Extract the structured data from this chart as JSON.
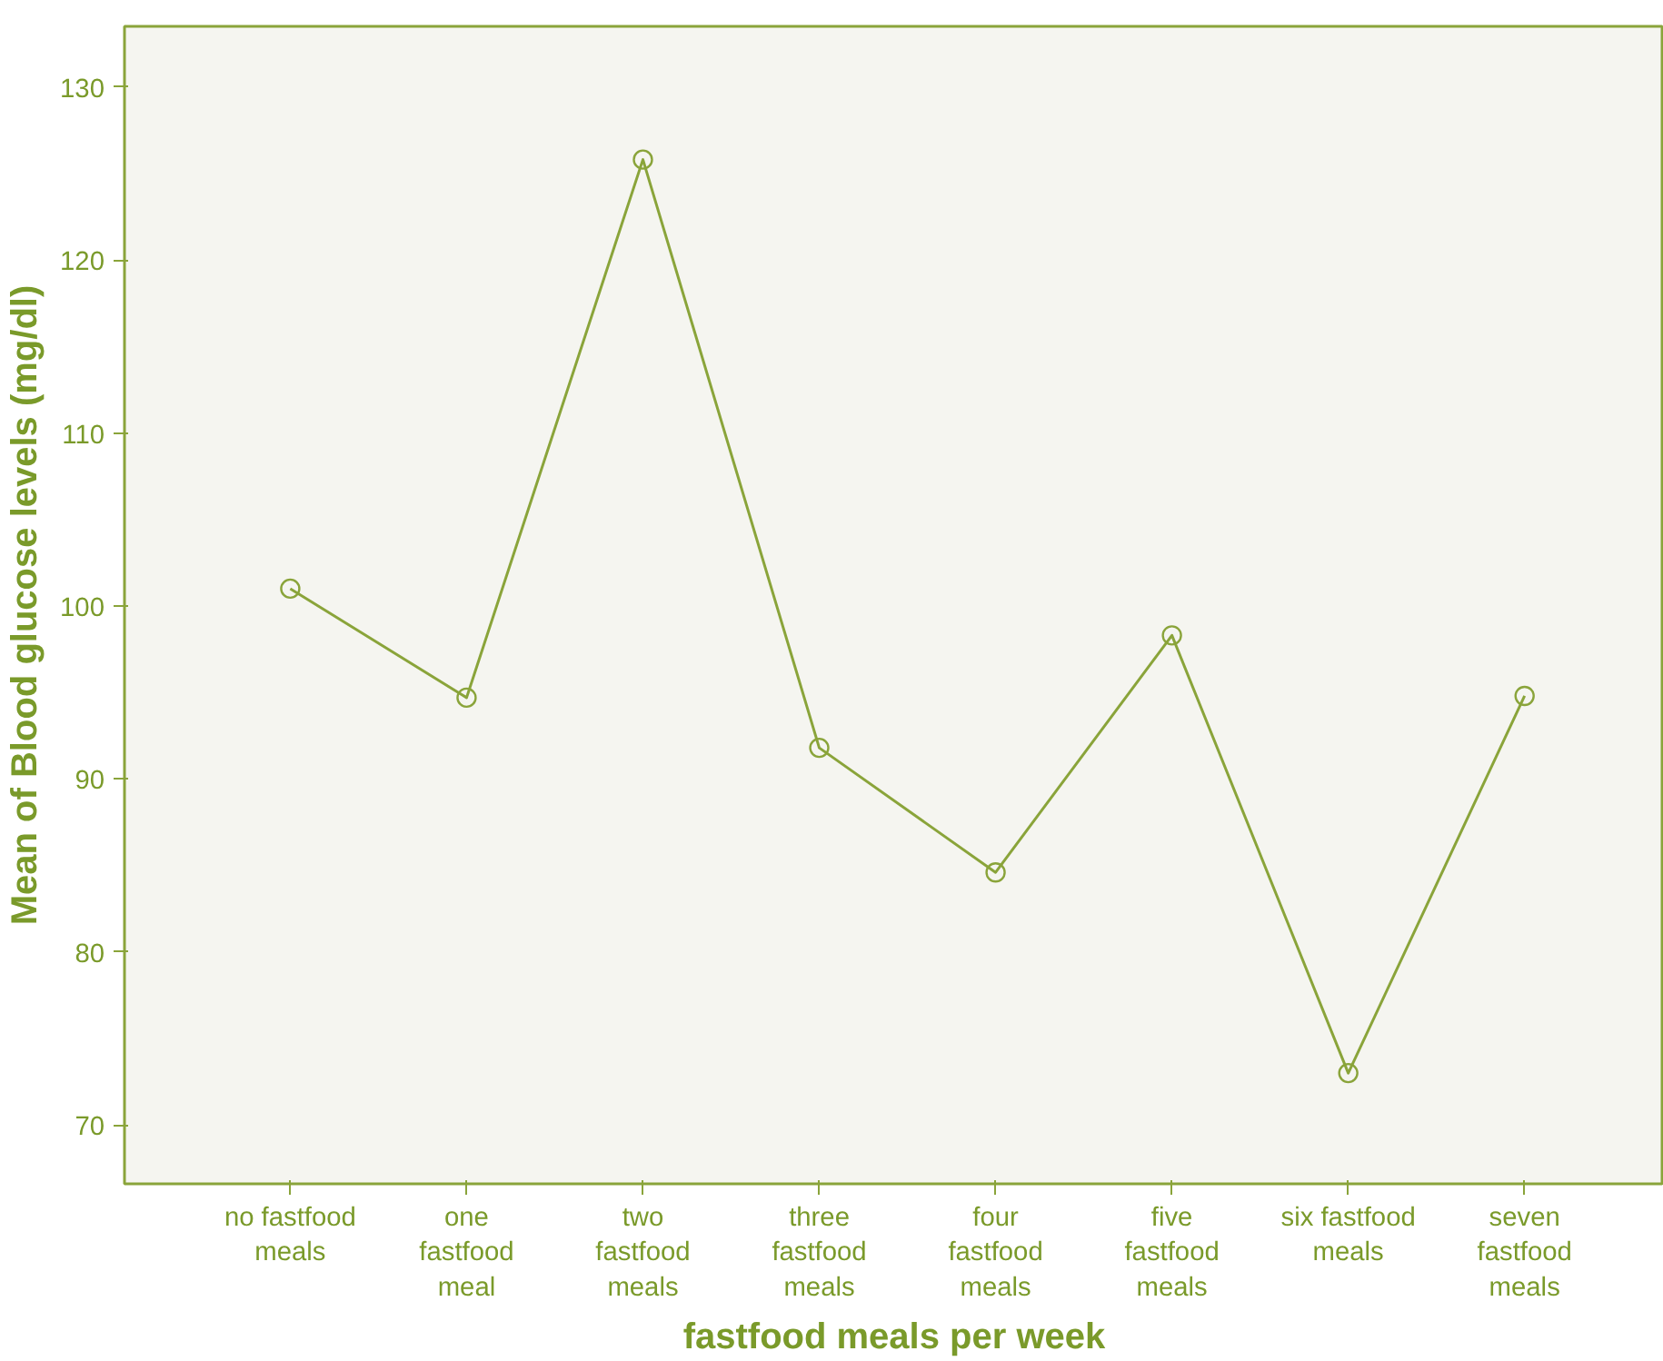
{
  "chart_data": {
    "type": "line",
    "xlabel": "fastfood meals per week",
    "ylabel": "Mean of Blood glucose levels (mg/dl)",
    "categories": [
      "no fastfood\nmeals",
      "one\nfastfood\nmeal",
      "two\nfastfood\nmeals",
      "three\nfastfood\nmeals",
      "four\nfastfood\nmeals",
      "five\nfastfood\nmeals",
      "six fastfood\nmeals",
      "seven\nfastfood\nmeals"
    ],
    "series": [
      {
        "color": "#8aa43a",
        "values": [
          101.0,
          94.7,
          125.8,
          91.8,
          84.6,
          98.3,
          73.0,
          94.8
        ]
      }
    ],
    "ylim": [
      66.6,
      133.5
    ],
    "yticks": [
      70,
      80,
      90,
      100,
      110,
      120,
      130
    ],
    "grid": false,
    "marker": "circle",
    "line_style": "solid"
  }
}
